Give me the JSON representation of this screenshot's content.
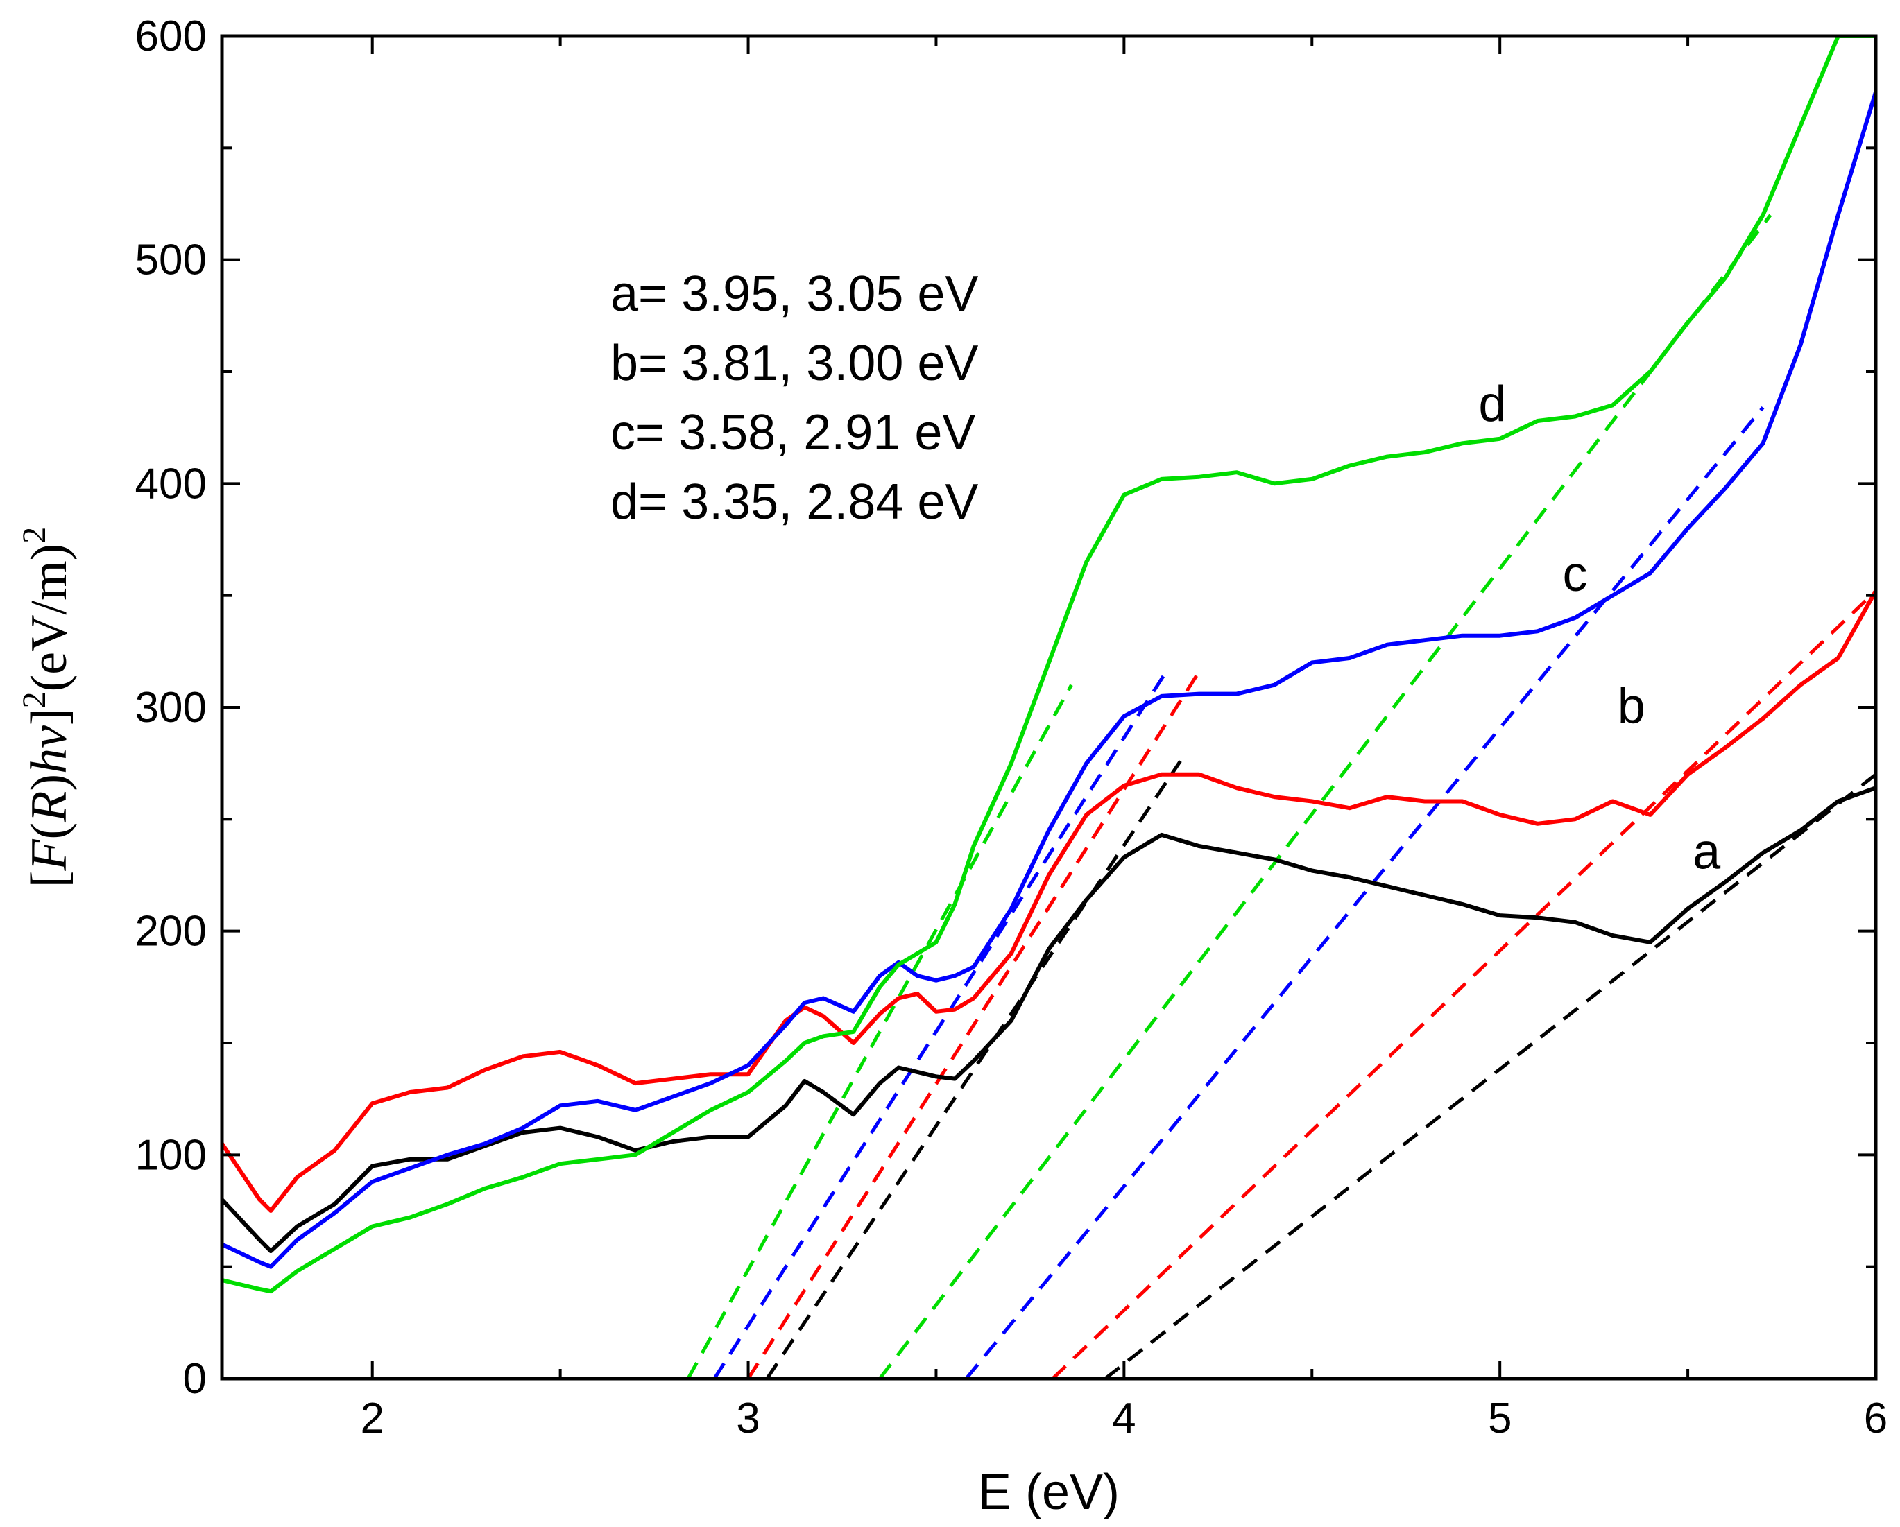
{
  "chart_data": {
    "type": "line",
    "xlabel": "E (eV)",
    "ylabel": {
      "open": "[",
      "f": "F",
      "lp": "(",
      "r": "R",
      "rp": ")",
      "hv": "hv",
      "close": "]",
      "exp1": "2",
      "unit": "(eV/m)",
      "exp2": "2"
    },
    "xlim": [
      1.6,
      6.0
    ],
    "ylim": [
      0,
      600
    ],
    "x_ticks": [
      2,
      3,
      4,
      5,
      6
    ],
    "x_tick_labels": [
      "2",
      "3",
      "4",
      "5",
      "6"
    ],
    "y_ticks": [
      0,
      100,
      200,
      300,
      400,
      500,
      600
    ],
    "y_tick_labels": [
      "0",
      "100",
      "200",
      "300",
      "400",
      "500",
      "600"
    ],
    "annotations": [
      "a= 3.95, 3.05 eV",
      "b= 3.81, 3.00 eV",
      "c= 3.58, 2.91 eV",
      "d= 3.35, 2.84 eV"
    ],
    "series": [
      {
        "name": "a",
        "color": "#000000",
        "label_pos": [
          5.55,
          228
        ],
        "x": [
          1.6,
          1.7,
          1.73,
          1.8,
          1.9,
          2.0,
          2.1,
          2.2,
          2.3,
          2.4,
          2.5,
          2.6,
          2.7,
          2.8,
          2.9,
          3.0,
          3.1,
          3.15,
          3.2,
          3.28,
          3.35,
          3.4,
          3.45,
          3.5,
          3.55,
          3.6,
          3.7,
          3.8,
          3.9,
          4.0,
          4.1,
          4.2,
          4.3,
          4.4,
          4.5,
          4.6,
          4.7,
          4.8,
          4.9,
          5.0,
          5.1,
          5.2,
          5.3,
          5.4,
          5.5,
          5.6,
          5.7,
          5.8,
          5.9,
          6.0
        ],
        "y": [
          80,
          62,
          57,
          68,
          78,
          95,
          98,
          98,
          104,
          110,
          112,
          108,
          102,
          106,
          108,
          108,
          122,
          133,
          128,
          118,
          132,
          139,
          137,
          135,
          134,
          142,
          160,
          192,
          214,
          233,
          243,
          238,
          235,
          232,
          227,
          224,
          220,
          216,
          212,
          207,
          206,
          204,
          198,
          195,
          210,
          222,
          235,
          245,
          258,
          264
        ]
      },
      {
        "name": "b",
        "color": "#ff0000",
        "label_pos": [
          5.35,
          293
        ],
        "x": [
          1.6,
          1.7,
          1.73,
          1.8,
          1.9,
          2.0,
          2.1,
          2.2,
          2.3,
          2.4,
          2.5,
          2.6,
          2.7,
          2.8,
          2.9,
          3.0,
          3.1,
          3.15,
          3.2,
          3.28,
          3.35,
          3.4,
          3.45,
          3.5,
          3.55,
          3.6,
          3.7,
          3.8,
          3.9,
          4.0,
          4.1,
          4.2,
          4.3,
          4.4,
          4.5,
          4.6,
          4.7,
          4.8,
          4.9,
          5.0,
          5.1,
          5.2,
          5.3,
          5.4,
          5.5,
          5.6,
          5.7,
          5.8,
          5.9,
          6.0
        ],
        "y": [
          105,
          80,
          75,
          90,
          102,
          123,
          128,
          130,
          138,
          144,
          146,
          140,
          132,
          134,
          136,
          136,
          160,
          166,
          162,
          150,
          163,
          170,
          172,
          164,
          165,
          170,
          190,
          225,
          252,
          265,
          270,
          270,
          264,
          260,
          258,
          255,
          260,
          258,
          258,
          252,
          248,
          250,
          258,
          252,
          270,
          282,
          295,
          310,
          322,
          352
        ]
      },
      {
        "name": "c",
        "color": "#0000ff",
        "label_pos": [
          5.2,
          352
        ],
        "x": [
          1.6,
          1.7,
          1.73,
          1.8,
          1.9,
          2.0,
          2.1,
          2.2,
          2.3,
          2.4,
          2.5,
          2.6,
          2.7,
          2.8,
          2.9,
          3.0,
          3.1,
          3.15,
          3.2,
          3.28,
          3.35,
          3.4,
          3.45,
          3.5,
          3.55,
          3.6,
          3.7,
          3.8,
          3.9,
          4.0,
          4.1,
          4.2,
          4.3,
          4.4,
          4.5,
          4.6,
          4.7,
          4.8,
          4.9,
          5.0,
          5.1,
          5.2,
          5.3,
          5.4,
          5.5,
          5.6,
          5.7,
          5.8,
          5.9,
          6.0
        ],
        "y": [
          60,
          52,
          50,
          62,
          74,
          88,
          94,
          100,
          105,
          112,
          122,
          124,
          120,
          126,
          132,
          140,
          158,
          168,
          170,
          164,
          180,
          186,
          180,
          178,
          180,
          184,
          210,
          245,
          275,
          296,
          305,
          306,
          306,
          310,
          320,
          322,
          328,
          330,
          332,
          332,
          334,
          340,
          350,
          360,
          380,
          398,
          418,
          462,
          520,
          575
        ]
      },
      {
        "name": "d",
        "color": "#00dd00",
        "label_pos": [
          4.98,
          428
        ],
        "x": [
          1.6,
          1.7,
          1.73,
          1.8,
          1.9,
          2.0,
          2.1,
          2.2,
          2.3,
          2.4,
          2.5,
          2.6,
          2.7,
          2.8,
          2.9,
          3.0,
          3.1,
          3.15,
          3.2,
          3.28,
          3.35,
          3.4,
          3.45,
          3.5,
          3.55,
          3.6,
          3.7,
          3.8,
          3.9,
          4.0,
          4.1,
          4.2,
          4.3,
          4.4,
          4.5,
          4.6,
          4.7,
          4.8,
          4.9,
          5.0,
          5.1,
          5.2,
          5.3,
          5.4,
          5.5,
          5.6,
          5.7,
          5.8,
          5.9,
          6.0
        ],
        "y": [
          44,
          40,
          39,
          48,
          58,
          68,
          72,
          78,
          85,
          90,
          96,
          98,
          100,
          110,
          120,
          128,
          142,
          150,
          153,
          155,
          175,
          185,
          190,
          195,
          212,
          238,
          275,
          320,
          365,
          395,
          402,
          403,
          405,
          400,
          402,
          408,
          412,
          414,
          418,
          420,
          428,
          430,
          435,
          450,
          472,
          492,
          520,
          560,
          600,
          600
        ]
      }
    ],
    "fit_lines": [
      {
        "series": "a",
        "color": "#000000",
        "points": [
          [
            3.05,
            0
          ],
          [
            4.15,
            276
          ]
        ]
      },
      {
        "series": "a",
        "color": "#000000",
        "points": [
          [
            3.95,
            0
          ],
          [
            6.0,
            270
          ]
        ]
      },
      {
        "series": "b",
        "color": "#ff0000",
        "points": [
          [
            3.0,
            0
          ],
          [
            4.2,
            316
          ]
        ]
      },
      {
        "series": "b",
        "color": "#ff0000",
        "points": [
          [
            3.81,
            0
          ],
          [
            6.0,
            352
          ]
        ]
      },
      {
        "series": "c",
        "color": "#0000ff",
        "points": [
          [
            2.91,
            0
          ],
          [
            4.12,
            318
          ]
        ]
      },
      {
        "series": "c",
        "color": "#0000ff",
        "points": [
          [
            3.58,
            0
          ],
          [
            5.7,
            434
          ]
        ]
      },
      {
        "series": "d",
        "color": "#00dd00",
        "points": [
          [
            2.84,
            0
          ],
          [
            3.86,
            310
          ]
        ]
      },
      {
        "series": "d",
        "color": "#00dd00",
        "points": [
          [
            3.35,
            0
          ],
          [
            5.72,
            520
          ]
        ]
      }
    ]
  }
}
